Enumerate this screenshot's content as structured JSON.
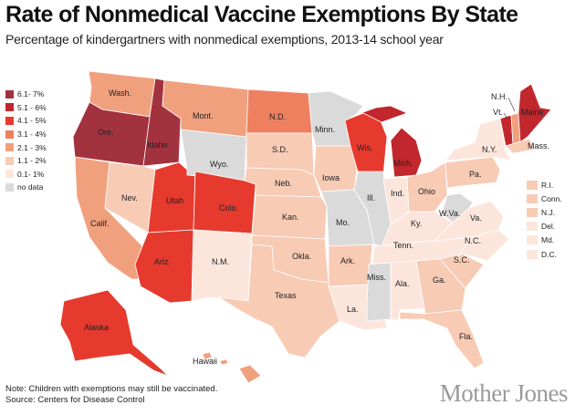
{
  "header": {
    "title": "Rate of Nonmedical Vaccine Exemptions By State",
    "subtitle": "Percentage of kindergartners with nonmedical exemptions, 2013-14 school year"
  },
  "legend": {
    "items": [
      {
        "label": "6.1- 7%",
        "color": "#a3323f"
      },
      {
        "label": "5.1 - 6%",
        "color": "#c1272d"
      },
      {
        "label": "4.1 - 5%",
        "color": "#e63a2e"
      },
      {
        "label": "3.1 - 4%",
        "color": "#ee8060"
      },
      {
        "label": "2.1 - 3%",
        "color": "#f1a07e"
      },
      {
        "label": "1.1 - 2%",
        "color": "#f8cbb5"
      },
      {
        "label": "0.1- 1%",
        "color": "#fce6dc"
      },
      {
        "label": "no data",
        "color": "#dadada"
      }
    ]
  },
  "states": {
    "wash": {
      "label": "Wash.",
      "color": "#f1a07e"
    },
    "ore": {
      "label": "Ore.",
      "color": "#a3323f"
    },
    "calif": {
      "label": "Calif.",
      "color": "#f1a07e"
    },
    "idaho": {
      "label": "Idaho",
      "color": "#a3323f"
    },
    "nev": {
      "label": "Nev.",
      "color": "#f8cbb5"
    },
    "utah": {
      "label": "Utah",
      "color": "#e63a2e"
    },
    "ariz": {
      "label": "Ariz.",
      "color": "#e63a2e"
    },
    "mont": {
      "label": "Mont.",
      "color": "#f1a07e"
    },
    "wyo": {
      "label": "Wyo.",
      "color": "#dadada"
    },
    "colo": {
      "label": "Colo.",
      "color": "#e63a2e"
    },
    "nm": {
      "label": "N.M.",
      "color": "#fce6dc"
    },
    "nd": {
      "label": "N.D.",
      "color": "#ee8060"
    },
    "sd": {
      "label": "S.D.",
      "color": "#f8cbb5"
    },
    "neb": {
      "label": "Neb.",
      "color": "#f8cbb5"
    },
    "kan": {
      "label": "Kan.",
      "color": "#f8cbb5"
    },
    "okla": {
      "label": "Okla.",
      "color": "#f8cbb5"
    },
    "texas": {
      "label": "Texas",
      "color": "#f8cbb5"
    },
    "minn": {
      "label": "Minn.",
      "color": "#dadada"
    },
    "iowa": {
      "label": "Iowa",
      "color": "#f8cbb5"
    },
    "mo": {
      "label": "Mo.",
      "color": "#dadada"
    },
    "ark": {
      "label": "Ark.",
      "color": "#f8cbb5"
    },
    "la": {
      "label": "La.",
      "color": "#fce6dc"
    },
    "wis": {
      "label": "Wis.",
      "color": "#e63a2e"
    },
    "ill": {
      "label": "Ill.",
      "color": "#dadada"
    },
    "mich": {
      "label": "Mich.",
      "color": "#c1272d"
    },
    "ind": {
      "label": "Ind.",
      "color": "#fce6dc"
    },
    "ohio": {
      "label": "Ohio",
      "color": "#f8cbb5"
    },
    "ky": {
      "label": "Ky.",
      "color": "#fce6dc"
    },
    "tenn": {
      "label": "Tenn.",
      "color": "#fce6dc"
    },
    "miss": {
      "label": "Miss.",
      "color": "#dadada"
    },
    "ala": {
      "label": "Ala.",
      "color": "#fce6dc"
    },
    "ga": {
      "label": "Ga.",
      "color": "#f8cbb5"
    },
    "fla": {
      "label": "Fla.",
      "color": "#f8cbb5"
    },
    "sc": {
      "label": "S.C.",
      "color": "#f8cbb5"
    },
    "nc": {
      "label": "N.C.",
      "color": "#fce6dc"
    },
    "va": {
      "label": "Va.",
      "color": "#fce6dc"
    },
    "wva": {
      "label": "W.Va.",
      "color": "#dadada"
    },
    "pa": {
      "label": "Pa.",
      "color": "#f8cbb5"
    },
    "ny": {
      "label": "N.Y.",
      "color": "#fce6dc"
    },
    "vt": {
      "label": "Vt.",
      "color": "#c1272d"
    },
    "nh": {
      "label": "N.H.",
      "color": "#f1a07e"
    },
    "maine": {
      "label": "Maine",
      "color": "#c1272d"
    },
    "mass": {
      "label": "Mass.",
      "color": "#f8cbb5"
    },
    "alaska": {
      "label": "Alaska",
      "color": "#e63a2e"
    },
    "hawaii": {
      "label": "Hawaii",
      "color": "#f1a07e"
    }
  },
  "northeast_small_states": [
    {
      "label": "R.I.",
      "color": "#f8cbb5"
    },
    {
      "label": "Conn.",
      "color": "#f8cbb5"
    },
    {
      "label": "N.J.",
      "color": "#f8cbb5"
    },
    {
      "label": "Del.",
      "color": "#fce6dc"
    },
    {
      "label": "Md.",
      "color": "#fce6dc"
    },
    {
      "label": "D.C.",
      "color": "#fce6dc"
    }
  ],
  "footer": {
    "note": "Note: Children with exemptions may still be vaccinated.",
    "source": "Source: Centers for Disease Control"
  },
  "brand": "Mother Jones"
}
